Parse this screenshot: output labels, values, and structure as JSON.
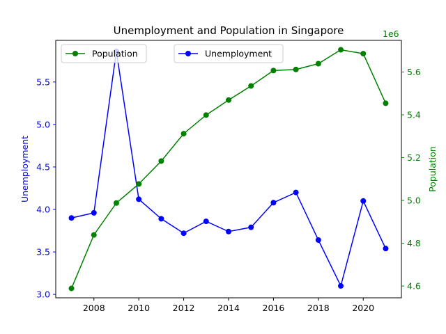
{
  "chart_data": {
    "type": "line",
    "title": "Unemployment and Population in Singapore",
    "x": [
      2007,
      2008,
      2009,
      2010,
      2011,
      2012,
      2013,
      2014,
      2015,
      2016,
      2017,
      2018,
      2019,
      2020,
      2021
    ],
    "x_ticks": [
      "2008",
      "2010",
      "2012",
      "2014",
      "2016",
      "2018",
      "2020"
    ],
    "xlim": [
      2006.3,
      2021.7
    ],
    "left_axis": {
      "label": "Unemployment",
      "color": "#0000ff",
      "ylim": [
        2.96,
        5.99
      ],
      "ticks": [
        "3.0",
        "3.5",
        "4.0",
        "4.5",
        "5.0",
        "5.5"
      ]
    },
    "right_axis": {
      "label": "Population",
      "color": "#008000",
      "offset_label": "1e6",
      "ylim": [
        4.545,
        5.748
      ],
      "ticks": [
        "4.6",
        "4.8",
        "5.0",
        "5.2",
        "5.4",
        "5.6"
      ]
    },
    "series": [
      {
        "name": "Unemployment",
        "axis": "left",
        "color": "#0000ff",
        "values": [
          3.9,
          3.96,
          5.86,
          4.12,
          3.89,
          3.72,
          3.86,
          3.74,
          3.79,
          4.08,
          4.2,
          3.64,
          3.1,
          4.1,
          3.54
        ]
      },
      {
        "name": "Population",
        "axis": "right",
        "color": "#008000",
        "values": [
          4.589,
          4.839,
          4.988,
          5.077,
          5.184,
          5.312,
          5.399,
          5.469,
          5.535,
          5.607,
          5.612,
          5.639,
          5.704,
          5.686,
          5.454
        ]
      }
    ],
    "legends": [
      {
        "series": "Population",
        "placement": "upper-left"
      },
      {
        "series": "Unemployment",
        "placement": "upper-center"
      }
    ],
    "grid": false
  }
}
